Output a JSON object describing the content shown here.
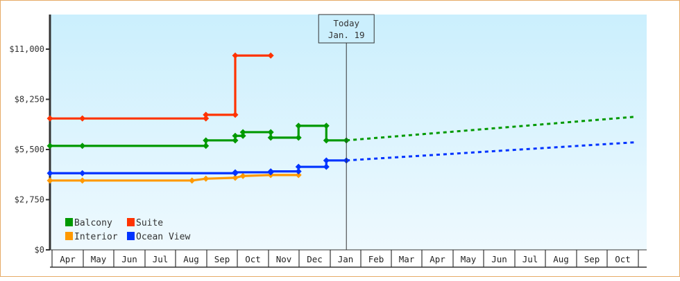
{
  "chart_data": {
    "type": "line",
    "title": "",
    "xlabel": "",
    "ylabel": "",
    "ylim": [
      0,
      12650
    ],
    "y_ticks": [
      {
        "value": 0,
        "label": "$0"
      },
      {
        "value": 2750,
        "label": "$2,750"
      },
      {
        "value": 5500,
        "label": "$5,500"
      },
      {
        "value": 8250,
        "label": "$8,250"
      },
      {
        "value": 11000,
        "label": "$11,000"
      }
    ],
    "categories": [
      "Apr",
      "May",
      "Jun",
      "Jul",
      "Aug",
      "Sep",
      "Oct",
      "Nov",
      "Dec",
      "Jan",
      "Feb",
      "Mar",
      "Apr",
      "May",
      "Jun",
      "Jul",
      "Aug",
      "Sep",
      "Oct"
    ],
    "grid": false,
    "legend_position": "lower-left",
    "today_marker": {
      "line1": "Today",
      "line2": "Jan. 19",
      "month_index": 9.6
    },
    "series": [
      {
        "name": "Balcony",
        "color": "#009900",
        "points": [
          {
            "m": 0.0,
            "v": 5700
          },
          {
            "m": 1.05,
            "v": 5700
          },
          {
            "m": 5.05,
            "v": 5700
          },
          {
            "m": 5.05,
            "v": 6000
          },
          {
            "m": 6.0,
            "v": 6000
          },
          {
            "m": 6.0,
            "v": 6250
          },
          {
            "m": 6.25,
            "v": 6250
          },
          {
            "m": 6.25,
            "v": 6450
          },
          {
            "m": 7.15,
            "v": 6450
          },
          {
            "m": 7.15,
            "v": 6150
          },
          {
            "m": 8.05,
            "v": 6150
          },
          {
            "m": 8.05,
            "v": 6800
          },
          {
            "m": 8.95,
            "v": 6800
          },
          {
            "m": 8.95,
            "v": 6000
          },
          {
            "m": 9.6,
            "v": 6000
          }
        ],
        "forecast": [
          {
            "m": 9.6,
            "v": 6000
          },
          {
            "m": 19.0,
            "v": 7300
          }
        ]
      },
      {
        "name": "Suite",
        "color": "#ff3300",
        "points": [
          {
            "m": 0.0,
            "v": 7200
          },
          {
            "m": 1.05,
            "v": 7200
          },
          {
            "m": 5.05,
            "v": 7200
          },
          {
            "m": 5.05,
            "v": 7400
          },
          {
            "m": 6.0,
            "v": 7400
          },
          {
            "m": 6.0,
            "v": 10650
          },
          {
            "m": 7.15,
            "v": 10650
          }
        ],
        "forecast": []
      },
      {
        "name": "Interior",
        "color": "#ff9900",
        "points": [
          {
            "m": 0.0,
            "v": 3800
          },
          {
            "m": 1.05,
            "v": 3800
          },
          {
            "m": 4.6,
            "v": 3800
          },
          {
            "m": 5.05,
            "v": 3900
          },
          {
            "m": 6.0,
            "v": 3950
          },
          {
            "m": 6.25,
            "v": 4050
          },
          {
            "m": 7.15,
            "v": 4100
          },
          {
            "m": 8.05,
            "v": 4100
          }
        ],
        "forecast": []
      },
      {
        "name": "Ocean View",
        "color": "#0033ff",
        "points": [
          {
            "m": 0.0,
            "v": 4200
          },
          {
            "m": 1.05,
            "v": 4200
          },
          {
            "m": 6.0,
            "v": 4200
          },
          {
            "m": 6.0,
            "v": 4250
          },
          {
            "m": 7.15,
            "v": 4250
          },
          {
            "m": 7.15,
            "v": 4300
          },
          {
            "m": 8.05,
            "v": 4300
          },
          {
            "m": 8.05,
            "v": 4550
          },
          {
            "m": 8.95,
            "v": 4550
          },
          {
            "m": 8.95,
            "v": 4900
          },
          {
            "m": 9.6,
            "v": 4900
          }
        ],
        "forecast": [
          {
            "m": 9.6,
            "v": 4900
          },
          {
            "m": 19.0,
            "v": 5900
          }
        ]
      }
    ],
    "legend": [
      {
        "label": "Balcony",
        "color": "#009900"
      },
      {
        "label": "Suite",
        "color": "#ff3300"
      },
      {
        "label": "Interior",
        "color": "#ff9900"
      },
      {
        "label": "Ocean View",
        "color": "#0033ff"
      }
    ]
  },
  "colors": {
    "frame_border": "#e6aa66",
    "plot_bg_top": "#cbeffd",
    "plot_bg_bottom": "#eef9fe",
    "axis": "#333333"
  }
}
